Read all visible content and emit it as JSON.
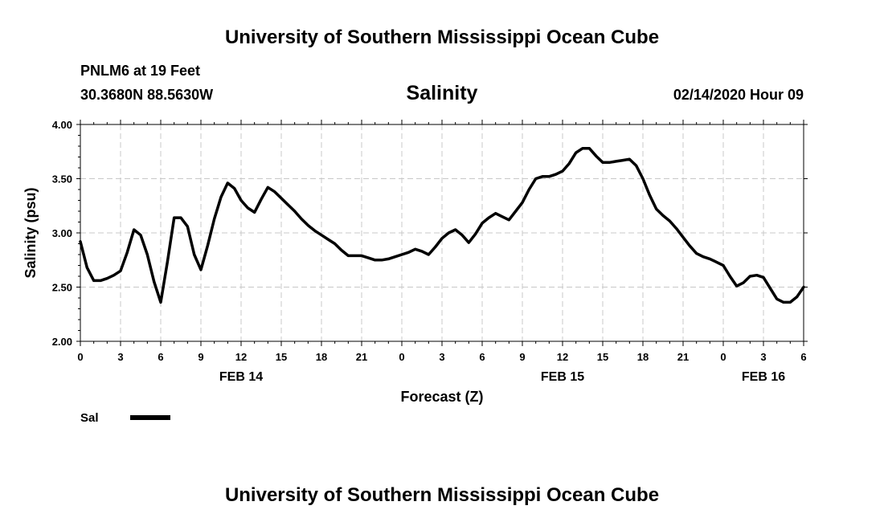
{
  "header": {
    "title": "University of Southern Mississippi Ocean Cube",
    "station": "PNLM6 at 19 Feet",
    "coords": "30.3680N 88.5630W",
    "chart_title": "Salinity",
    "datetime": "02/14/2020 Hour 09",
    "footer": "University of Southern Mississippi Ocean Cube"
  },
  "chart_data": {
    "type": "line",
    "title": "Salinity",
    "xlabel": "Forecast (Z)",
    "ylabel": "Salinity (psu)",
    "xlim": [
      0,
      54
    ],
    "ylim": [
      2.0,
      4.0
    ],
    "yticks": [
      "2.00",
      "2.50",
      "3.00",
      "3.50",
      "4.00"
    ],
    "xticks": [
      "0",
      "3",
      "6",
      "9",
      "12",
      "15",
      "18",
      "21",
      "0",
      "3",
      "6",
      "9",
      "12",
      "15",
      "18",
      "21",
      "0",
      "3",
      "6"
    ],
    "date_labels": [
      {
        "label": "FEB 14",
        "x": 12
      },
      {
        "label": "FEB 15",
        "x": 36
      },
      {
        "label": "FEB 16",
        "x": 51
      }
    ],
    "grid": true,
    "legend_position": "bottom-left",
    "line_color": "#000000",
    "series": [
      {
        "name": "Sal",
        "x": [
          0,
          0.5,
          1,
          1.5,
          2,
          2.5,
          3,
          3.5,
          4,
          4.5,
          5,
          5.5,
          6,
          6.5,
          7,
          7.5,
          8,
          8.5,
          9,
          9.5,
          10,
          10.5,
          11,
          11.5,
          12,
          12.5,
          13,
          13.5,
          14,
          14.5,
          15,
          15.5,
          16,
          16.5,
          17,
          17.5,
          18,
          18.5,
          19,
          19.5,
          20,
          20.5,
          21,
          21.5,
          22,
          22.5,
          23,
          23.5,
          24,
          24.5,
          25,
          25.5,
          26,
          26.5,
          27,
          27.5,
          28,
          28.5,
          29,
          29.5,
          30,
          30.5,
          31,
          31.5,
          32,
          32.5,
          33,
          33.5,
          34,
          34.5,
          35,
          35.5,
          36,
          36.5,
          37,
          37.5,
          38,
          38.5,
          39,
          39.5,
          40,
          40.5,
          41,
          41.5,
          42,
          42.5,
          43,
          43.5,
          44,
          44.5,
          45,
          45.5,
          46,
          46.5,
          47,
          47.5,
          48,
          48.5,
          49,
          49.5,
          50,
          50.5,
          51,
          51.5,
          52,
          52.5,
          53,
          53.5,
          54
        ],
        "values": [
          2.92,
          2.68,
          2.56,
          2.56,
          2.58,
          2.61,
          2.65,
          2.82,
          3.03,
          2.98,
          2.8,
          2.55,
          2.36,
          2.73,
          3.14,
          3.14,
          3.06,
          2.8,
          2.66,
          2.88,
          3.13,
          3.33,
          3.46,
          3.41,
          3.3,
          3.23,
          3.19,
          3.31,
          3.42,
          3.38,
          3.32,
          3.26,
          3.2,
          3.13,
          3.07,
          3.02,
          2.98,
          2.94,
          2.9,
          2.84,
          2.79,
          2.79,
          2.79,
          2.77,
          2.75,
          2.75,
          2.76,
          2.78,
          2.8,
          2.82,
          2.85,
          2.83,
          2.8,
          2.87,
          2.95,
          3.0,
          3.03,
          2.98,
          2.91,
          2.99,
          3.09,
          3.14,
          3.18,
          3.15,
          3.12,
          3.2,
          3.28,
          3.4,
          3.5,
          3.52,
          3.52,
          3.54,
          3.57,
          3.64,
          3.74,
          3.78,
          3.78,
          3.71,
          3.65,
          3.65,
          3.66,
          3.67,
          3.68,
          3.62,
          3.5,
          3.35,
          3.22,
          3.16,
          3.11,
          3.04,
          2.96,
          2.88,
          2.81,
          2.78,
          2.76,
          2.73,
          2.7,
          2.6,
          2.51,
          2.54,
          2.6,
          2.61,
          2.59,
          2.49,
          2.39,
          2.36,
          2.36,
          2.41,
          2.5
        ]
      }
    ]
  }
}
